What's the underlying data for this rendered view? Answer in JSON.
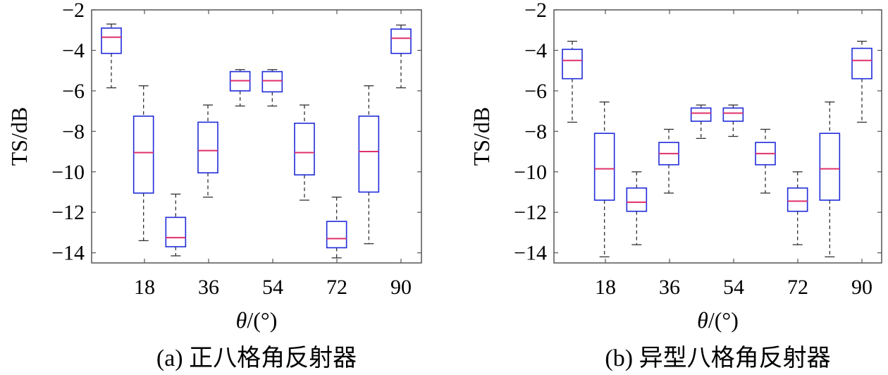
{
  "figure": {
    "x_tick_labels": [
      "18",
      "36",
      "54",
      "72",
      "90"
    ],
    "y_tick_labels": [
      "−2",
      "−4",
      "−6",
      "−8",
      "−10",
      "−12",
      "−14"
    ]
  },
  "colors": {
    "box": "#1f2bd9",
    "median": "#e0306a",
    "whisker": "#333333",
    "axis": "#555555"
  },
  "chart_data": [
    {
      "type": "box",
      "caption": "(a) 正八格角反射器",
      "xlabel_italic": "θ",
      "xlabel_rest": "/(°)",
      "ylabel": "TS/dB",
      "ylim": [
        -14.5,
        -2
      ],
      "x_ticks": [
        18,
        36,
        54,
        72,
        90
      ],
      "grid": false,
      "boxes": [
        {
          "x": 0,
          "whisker_low": -5.85,
          "q1": -4.15,
          "median": -3.35,
          "q3": -2.9,
          "whisker_high": -2.7
        },
        {
          "x": 9,
          "whisker_low": -13.4,
          "q1": -11.05,
          "median": -9.05,
          "q3": -7.25,
          "whisker_high": -5.75
        },
        {
          "x": 18,
          "whisker_low": -14.15,
          "q1": -13.7,
          "median": -13.25,
          "q3": -12.25,
          "whisker_high": -11.1
        },
        {
          "x": 27,
          "whisker_low": -11.25,
          "q1": -10.05,
          "median": -8.95,
          "q3": -7.55,
          "whisker_high": -6.7
        },
        {
          "x": 36,
          "whisker_low": -6.75,
          "q1": -6.0,
          "median": -5.5,
          "q3": -5.05,
          "whisker_high": -4.95
        },
        {
          "x": 45,
          "whisker_low": -6.75,
          "q1": -6.05,
          "median": -5.5,
          "q3": -5.05,
          "whisker_high": -4.95
        },
        {
          "x": 54,
          "whisker_low": -11.4,
          "q1": -10.15,
          "median": -9.05,
          "q3": -7.6,
          "whisker_high": -6.7
        },
        {
          "x": 63,
          "whisker_low": -14.25,
          "q1": -13.75,
          "median": -13.3,
          "q3": -12.45,
          "whisker_high": -11.25
        },
        {
          "x": 72,
          "whisker_low": -13.55,
          "q1": -11.0,
          "median": -9.0,
          "q3": -7.25,
          "whisker_high": -5.75
        },
        {
          "x": 81,
          "whisker_low": -5.85,
          "q1": -4.15,
          "median": -3.4,
          "q3": -2.95,
          "whisker_high": -2.75
        }
      ]
    },
    {
      "type": "box",
      "caption": "(b) 异型八格角反射器",
      "xlabel_italic": "θ",
      "xlabel_rest": "/(°)",
      "ylabel": "TS/dB",
      "ylim": [
        -14.5,
        -2
      ],
      "x_ticks": [
        18,
        36,
        54,
        72,
        90
      ],
      "grid": false,
      "boxes": [
        {
          "x": 0,
          "whisker_low": -7.55,
          "q1": -5.4,
          "median": -4.5,
          "q3": -3.95,
          "whisker_high": -3.55
        },
        {
          "x": 9,
          "whisker_low": -14.2,
          "q1": -11.4,
          "median": -9.85,
          "q3": -8.1,
          "whisker_high": -6.55
        },
        {
          "x": 18,
          "whisker_low": -13.6,
          "q1": -11.95,
          "median": -11.5,
          "q3": -10.8,
          "whisker_high": -10.0
        },
        {
          "x": 27,
          "whisker_low": -11.05,
          "q1": -9.65,
          "median": -9.1,
          "q3": -8.55,
          "whisker_high": -7.9
        },
        {
          "x": 36,
          "whisker_low": -8.35,
          "q1": -7.5,
          "median": -7.1,
          "q3": -6.85,
          "whisker_high": -6.7
        },
        {
          "x": 45,
          "whisker_low": -8.25,
          "q1": -7.5,
          "median": -7.1,
          "q3": -6.85,
          "whisker_high": -6.7
        },
        {
          "x": 54,
          "whisker_low": -11.05,
          "q1": -9.65,
          "median": -9.1,
          "q3": -8.55,
          "whisker_high": -7.9
        },
        {
          "x": 63,
          "whisker_low": -13.6,
          "q1": -11.95,
          "median": -11.45,
          "q3": -10.8,
          "whisker_high": -10.0
        },
        {
          "x": 72,
          "whisker_low": -14.2,
          "q1": -11.4,
          "median": -9.85,
          "q3": -8.1,
          "whisker_high": -6.55
        },
        {
          "x": 81,
          "whisker_low": -7.55,
          "q1": -5.4,
          "median": -4.5,
          "q3": -3.9,
          "whisker_high": -3.55
        }
      ]
    }
  ]
}
